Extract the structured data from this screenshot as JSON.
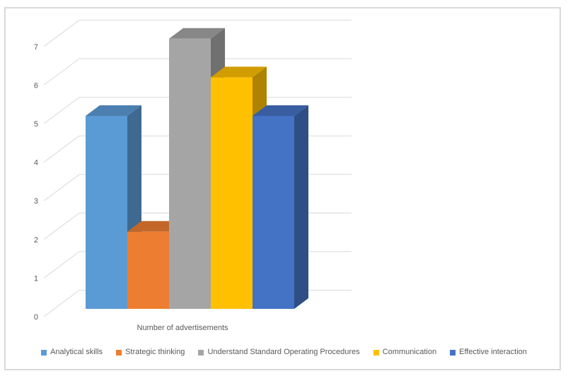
{
  "window": {
    "background": "#FFFFFF",
    "border_color": "#D9D9D9"
  },
  "chart_data": {
    "type": "bar",
    "style": "3d-clustered-column",
    "title": "",
    "categories": [
      "Number of advertisements"
    ],
    "series": [
      {
        "name": "Analytical skills",
        "values": [
          5
        ],
        "color": "#5B9BD5"
      },
      {
        "name": "Strategic thinking",
        "values": [
          2
        ],
        "color": "#ED7D31"
      },
      {
        "name": "Understand Standard Operating Procedures",
        "values": [
          7
        ],
        "color": "#A5A5A5"
      },
      {
        "name": "Communication",
        "values": [
          6
        ],
        "color": "#FFC000"
      },
      {
        "name": "Effective interaction",
        "values": [
          5
        ],
        "color": "#4472C4"
      }
    ],
    "ylim": [
      0,
      7
    ],
    "ytick_step": 1,
    "yticks": [
      "0",
      "1",
      "2",
      "3",
      "4",
      "5",
      "6",
      "7"
    ],
    "grid": true,
    "legend_position": "bottom",
    "axis_text_color": "#595959",
    "gridline_color": "#D9D9D9"
  }
}
